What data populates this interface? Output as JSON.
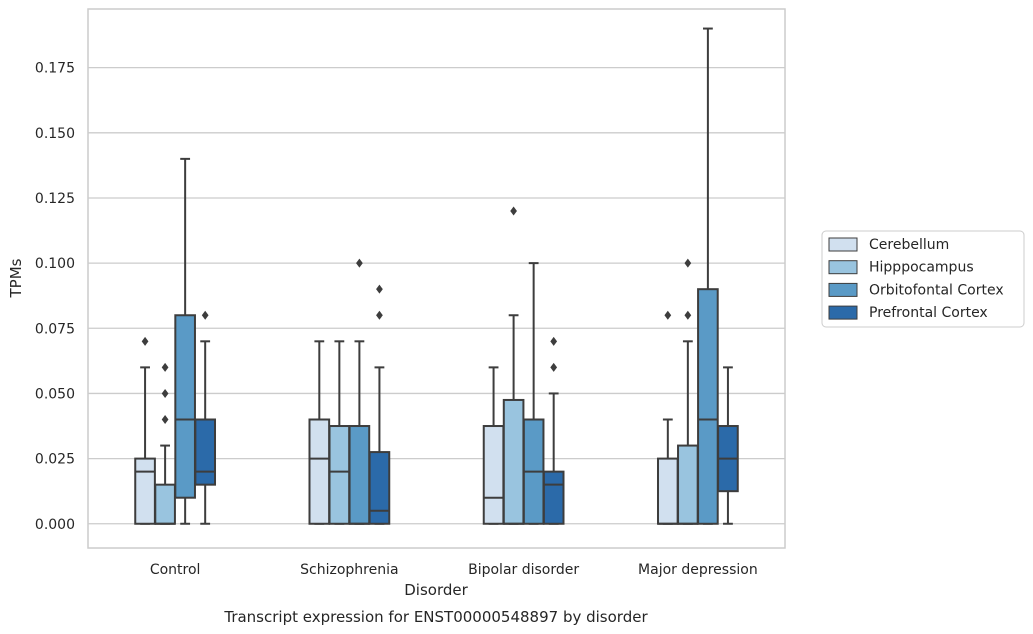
{
  "chart_data": {
    "type": "box",
    "xlabel": "Disorder",
    "ylabel": "TPMs",
    "caption": "Transcript expression for ENST00000548897 by disorder",
    "ylim": [
      -0.0093,
      0.1975
    ],
    "yticks": [
      "0.000",
      "0.025",
      "0.050",
      "0.075",
      "0.100",
      "0.125",
      "0.150",
      "0.175"
    ],
    "categories": [
      "Control",
      "Schizophrenia",
      "Bipolar disorder",
      "Major depression"
    ],
    "grid": "horizontal",
    "legend_position": "right",
    "series": [
      {
        "name": "Cerebellum",
        "color": "#d1e0ef",
        "boxes": [
          {
            "whislo": 0.0,
            "q1": 0.0,
            "med": 0.02,
            "q3": 0.025,
            "whishi": 0.06,
            "fliers": [
              0.07
            ]
          },
          {
            "whislo": 0.0,
            "q1": 0.0,
            "med": 0.025,
            "q3": 0.04,
            "whishi": 0.07,
            "fliers": []
          },
          {
            "whislo": 0.0,
            "q1": 0.0,
            "med": 0.01,
            "q3": 0.0375,
            "whishi": 0.06,
            "fliers": []
          },
          {
            "whislo": 0.0,
            "q1": 0.0,
            "med": 0.0,
            "q3": 0.025,
            "whishi": 0.04,
            "fliers": [
              0.08
            ]
          }
        ]
      },
      {
        "name": "Hipppocampus",
        "color": "#99c4df",
        "boxes": [
          {
            "whislo": 0.0,
            "q1": 0.0,
            "med": 0.0,
            "q3": 0.015,
            "whishi": 0.03,
            "fliers": [
              0.04,
              0.05,
              0.06
            ]
          },
          {
            "whislo": 0.0,
            "q1": 0.0,
            "med": 0.02,
            "q3": 0.0375,
            "whishi": 0.07,
            "fliers": []
          },
          {
            "whislo": 0.0,
            "q1": 0.0,
            "med": 0.0,
            "q3": 0.0475,
            "whishi": 0.08,
            "fliers": [
              0.12
            ]
          },
          {
            "whislo": 0.0,
            "q1": 0.0,
            "med": 0.0,
            "q3": 0.03,
            "whishi": 0.07,
            "fliers": [
              0.08,
              0.1
            ]
          }
        ]
      },
      {
        "name": "Orbitofontal Cortex",
        "color": "#5a9ac6",
        "boxes": [
          {
            "whislo": 0.0,
            "q1": 0.01,
            "med": 0.04,
            "q3": 0.08,
            "whishi": 0.14,
            "fliers": []
          },
          {
            "whislo": 0.0,
            "q1": 0.0,
            "med": 0.0,
            "q3": 0.0375,
            "whishi": 0.07,
            "fliers": [
              0.1
            ]
          },
          {
            "whislo": 0.0,
            "q1": 0.0,
            "med": 0.02,
            "q3": 0.04,
            "whishi": 0.1,
            "fliers": []
          },
          {
            "whislo": 0.0,
            "q1": 0.0,
            "med": 0.04,
            "q3": 0.09,
            "whishi": 0.19,
            "fliers": []
          }
        ]
      },
      {
        "name": "Prefrontal Cortex",
        "color": "#2b6aa9",
        "boxes": [
          {
            "whislo": 0.0,
            "q1": 0.015,
            "med": 0.02,
            "q3": 0.04,
            "whishi": 0.07,
            "fliers": [
              0.08
            ]
          },
          {
            "whislo": 0.0,
            "q1": 0.0,
            "med": 0.005,
            "q3": 0.0275,
            "whishi": 0.06,
            "fliers": [
              0.08,
              0.09
            ]
          },
          {
            "whislo": 0.0,
            "q1": 0.0,
            "med": 0.015,
            "q3": 0.02,
            "whishi": 0.05,
            "fliers": [
              0.06,
              0.07
            ]
          },
          {
            "whislo": 0.0,
            "q1": 0.0125,
            "med": 0.025,
            "q3": 0.0375,
            "whishi": 0.06,
            "fliers": []
          }
        ]
      }
    ]
  }
}
